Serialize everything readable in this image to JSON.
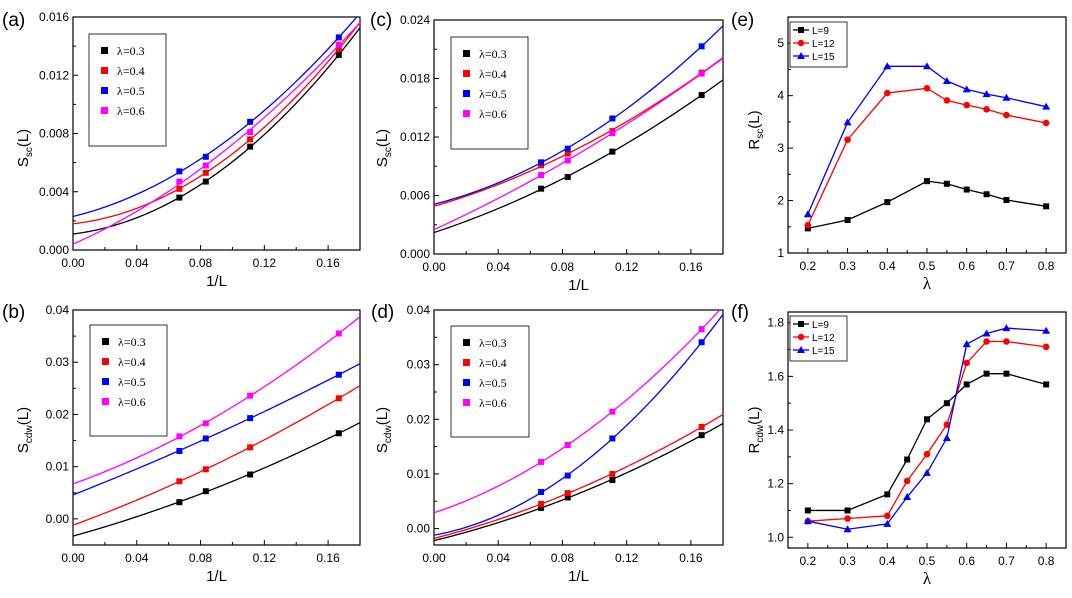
{
  "colors": {
    "lambda_0_3": "#000000",
    "lambda_0_4": "#ff0000",
    "lambda_0_5": "#0000ff",
    "lambda_0_6": "#ff00ff",
    "L9": "#000000",
    "L12": "#ff0000",
    "L15": "#0000ff"
  },
  "chart_data": [
    {
      "panel": "(a)",
      "type": "scatter",
      "xlabel": "1/L",
      "ylabel_main": "S",
      "ylabel_sub": "sc",
      "ylabel_tail": "(L)",
      "xlim": [
        0,
        0.18
      ],
      "ylim": [
        0,
        0.016
      ],
      "xticks": [
        "0.00",
        "0.04",
        "0.08",
        "0.12",
        "0.16"
      ],
      "yticks": [
        "0.000",
        "0.004",
        "0.008",
        "0.012",
        "0.016"
      ],
      "legend": "top-left",
      "series": [
        {
          "name": "λ=0.3",
          "color": "#000000",
          "x": [
            0.0667,
            0.0833,
            0.1111,
            0.1667
          ],
          "y": [
            0.0036,
            0.0047,
            0.0071,
            0.0134
          ],
          "fit_intercept": 0.0011
        },
        {
          "name": "λ=0.4",
          "color": "#ff0000",
          "x": [
            0.0667,
            0.0833,
            0.1111,
            0.1667
          ],
          "y": [
            0.0042,
            0.0053,
            0.0076,
            0.0138
          ],
          "fit_intercept": 0.0018
        },
        {
          "name": "λ=0.5",
          "color": "#0000ff",
          "x": [
            0.0667,
            0.0833,
            0.1111,
            0.1667
          ],
          "y": [
            0.0054,
            0.0064,
            0.0088,
            0.0146
          ],
          "fit_intercept": 0.0023
        },
        {
          "name": "λ=0.6",
          "color": "#ff00ff",
          "x": [
            0.0667,
            0.0833,
            0.1111,
            0.1667
          ],
          "y": [
            0.0047,
            0.0058,
            0.0081,
            0.0141
          ],
          "fit_intercept": 0.0004
        }
      ]
    },
    {
      "panel": "(c)",
      "type": "scatter",
      "xlabel": "1/L",
      "ylabel_main": "S",
      "ylabel_sub": "sc",
      "ylabel_tail": "(L)",
      "xlim": [
        0,
        0.18
      ],
      "ylim": [
        0,
        0.024
      ],
      "xticks": [
        "0.00",
        "0.04",
        "0.08",
        "0.12",
        "0.16"
      ],
      "yticks": [
        "0.000",
        "0.006",
        "0.012",
        "0.018",
        "0.024"
      ],
      "legend": "top-left",
      "series": [
        {
          "name": "λ=0.3",
          "color": "#000000",
          "x": [
            0.0667,
            0.0833,
            0.1111,
            0.1667
          ],
          "y": [
            0.0067,
            0.0079,
            0.0105,
            0.0163
          ],
          "fit_intercept": 0.0022
        },
        {
          "name": "λ=0.4",
          "color": "#ff0000",
          "x": [
            0.0667,
            0.0833,
            0.1111,
            0.1667
          ],
          "y": [
            0.0091,
            0.0103,
            0.0126,
            0.0186
          ],
          "fit_intercept": 0.0049
        },
        {
          "name": "λ=0.5",
          "color": "#0000ff",
          "x": [
            0.0667,
            0.0833,
            0.1111,
            0.1667
          ],
          "y": [
            0.0094,
            0.0108,
            0.0139,
            0.0213
          ],
          "fit_intercept": 0.0051
        },
        {
          "name": "λ=0.6",
          "color": "#ff00ff",
          "x": [
            0.0667,
            0.0833,
            0.1111,
            0.1667
          ],
          "y": [
            0.0081,
            0.0096,
            0.0124,
            0.0185
          ],
          "fit_intercept": 0.0025
        }
      ]
    },
    {
      "panel": "(b)",
      "type": "scatter",
      "xlabel": "1/L",
      "ylabel_main": "S",
      "ylabel_sub": "cdw",
      "ylabel_tail": "(L)",
      "xlim": [
        0,
        0.18
      ],
      "ylim": [
        -0.005,
        0.04
      ],
      "xticks": [
        "0.00",
        "0.04",
        "0.08",
        "0.12",
        "0.16"
      ],
      "yticks": [
        "0.00",
        "0.01",
        "0.02",
        "0.03",
        "0.04"
      ],
      "legend": "top-left",
      "series": [
        {
          "name": "λ=0.3",
          "color": "#000000",
          "x": [
            0.0667,
            0.0833,
            0.1111,
            0.1667
          ],
          "y": [
            0.0032,
            0.0053,
            0.0085,
            0.0164
          ],
          "fit_intercept": -0.0033
        },
        {
          "name": "λ=0.4",
          "color": "#ff0000",
          "x": [
            0.0667,
            0.0833,
            0.1111,
            0.1667
          ],
          "y": [
            0.0072,
            0.0095,
            0.0137,
            0.0231
          ],
          "fit_intercept": -0.0012
        },
        {
          "name": "λ=0.5",
          "color": "#0000ff",
          "x": [
            0.0667,
            0.0833,
            0.1111,
            0.1667
          ],
          "y": [
            0.013,
            0.0154,
            0.0193,
            0.0276
          ],
          "fit_intercept": 0.0046
        },
        {
          "name": "λ=0.6",
          "color": "#ff00ff",
          "x": [
            0.0667,
            0.0833,
            0.1111,
            0.1667
          ],
          "y": [
            0.0158,
            0.0183,
            0.0236,
            0.0355
          ],
          "fit_intercept": 0.0067
        }
      ]
    },
    {
      "panel": "(d)",
      "type": "scatter",
      "xlabel": "1/L",
      "ylabel_main": "S",
      "ylabel_sub": "cdw",
      "ylabel_tail": "(L)",
      "xlim": [
        0,
        0.18
      ],
      "ylim": [
        -0.003,
        0.04
      ],
      "xticks": [
        "0.00",
        "0.04",
        "0.08",
        "0.12",
        "0.16"
      ],
      "yticks": [
        "0.00",
        "0.01",
        "0.02",
        "0.03",
        "0.04"
      ],
      "legend": "top-left",
      "series": [
        {
          "name": "λ=0.3",
          "color": "#000000",
          "x": [
            0.0667,
            0.0833,
            0.1111,
            0.1667
          ],
          "y": [
            0.0038,
            0.0057,
            0.0089,
            0.0171
          ],
          "fit_intercept": -0.0022
        },
        {
          "name": "λ=0.4",
          "color": "#ff0000",
          "x": [
            0.0667,
            0.0833,
            0.1111,
            0.1667
          ],
          "y": [
            0.0045,
            0.0065,
            0.01,
            0.0186
          ],
          "fit_intercept": -0.0018
        },
        {
          "name": "λ=0.5",
          "color": "#0000ff",
          "x": [
            0.0667,
            0.0833,
            0.1111,
            0.1667
          ],
          "y": [
            0.0067,
            0.0097,
            0.0165,
            0.0341
          ],
          "fit_intercept": -0.0012
        },
        {
          "name": "λ=0.6",
          "color": "#ff00ff",
          "x": [
            0.0667,
            0.0833,
            0.1111,
            0.1667
          ],
          "y": [
            0.0122,
            0.0153,
            0.0214,
            0.0365
          ],
          "fit_intercept": 0.0029
        }
      ]
    },
    {
      "panel": "(e)",
      "type": "line",
      "xlabel": "λ",
      "ylabel_main": "R",
      "ylabel_sub": "sc",
      "ylabel_tail": "(L)",
      "xlim": [
        0.15,
        0.85
      ],
      "ylim": [
        1,
        5.5
      ],
      "xticks": [
        "0.2",
        "0.3",
        "0.4",
        "0.5",
        "0.6",
        "0.7",
        "0.8"
      ],
      "yticks": [
        "1",
        "2",
        "3",
        "4",
        "5"
      ],
      "legend": "top-left",
      "series": [
        {
          "name": "L=9",
          "color": "#000000",
          "marker": "square",
          "x": [
            0.2,
            0.3,
            0.4,
            0.5,
            0.55,
            0.6,
            0.65,
            0.7,
            0.8
          ],
          "y": [
            1.47,
            1.63,
            1.97,
            2.37,
            2.32,
            2.21,
            2.12,
            2.01,
            1.89
          ]
        },
        {
          "name": "L=12",
          "color": "#ff0000",
          "marker": "circle",
          "x": [
            0.2,
            0.3,
            0.4,
            0.5,
            0.55,
            0.6,
            0.65,
            0.7,
            0.8
          ],
          "y": [
            1.53,
            3.16,
            4.05,
            4.14,
            3.91,
            3.82,
            3.74,
            3.63,
            3.48
          ]
        },
        {
          "name": "L=15",
          "color": "#0000ff",
          "marker": "triangle",
          "x": [
            0.2,
            0.3,
            0.4,
            0.5,
            0.55,
            0.6,
            0.65,
            0.7,
            0.8
          ],
          "y": [
            1.74,
            3.49,
            4.56,
            4.56,
            4.28,
            4.12,
            4.03,
            3.96,
            3.79
          ]
        }
      ]
    },
    {
      "panel": "(f)",
      "type": "line",
      "xlabel": "λ",
      "ylabel_main": "R",
      "ylabel_sub": "cdw",
      "ylabel_tail": "(L)",
      "xlim": [
        0.15,
        0.85
      ],
      "ylim": [
        0.96,
        1.84
      ],
      "xticks": [
        "0.2",
        "0.3",
        "0.4",
        "0.5",
        "0.6",
        "0.7",
        "0.8"
      ],
      "yticks": [
        "1.0",
        "1.2",
        "1.4",
        "1.6",
        "1.8"
      ],
      "legend": "top-left",
      "series": [
        {
          "name": "L=9",
          "color": "#000000",
          "marker": "square",
          "x": [
            0.2,
            0.3,
            0.4,
            0.45,
            0.5,
            0.55,
            0.6,
            0.65,
            0.7,
            0.8
          ],
          "y": [
            1.1,
            1.1,
            1.16,
            1.29,
            1.44,
            1.5,
            1.57,
            1.61,
            1.61,
            1.57
          ]
        },
        {
          "name": "L=12",
          "color": "#ff0000",
          "marker": "circle",
          "x": [
            0.2,
            0.3,
            0.4,
            0.45,
            0.5,
            0.55,
            0.6,
            0.65,
            0.7,
            0.8
          ],
          "y": [
            1.06,
            1.07,
            1.08,
            1.21,
            1.31,
            1.42,
            1.65,
            1.73,
            1.73,
            1.71
          ]
        },
        {
          "name": "L=15",
          "color": "#0000ff",
          "marker": "triangle",
          "x": [
            0.2,
            0.3,
            0.4,
            0.45,
            0.5,
            0.55,
            0.6,
            0.65,
            0.7,
            0.8
          ],
          "y": [
            1.06,
            1.03,
            1.05,
            1.15,
            1.24,
            1.37,
            1.72,
            1.76,
            1.78,
            1.77
          ]
        }
      ]
    }
  ]
}
